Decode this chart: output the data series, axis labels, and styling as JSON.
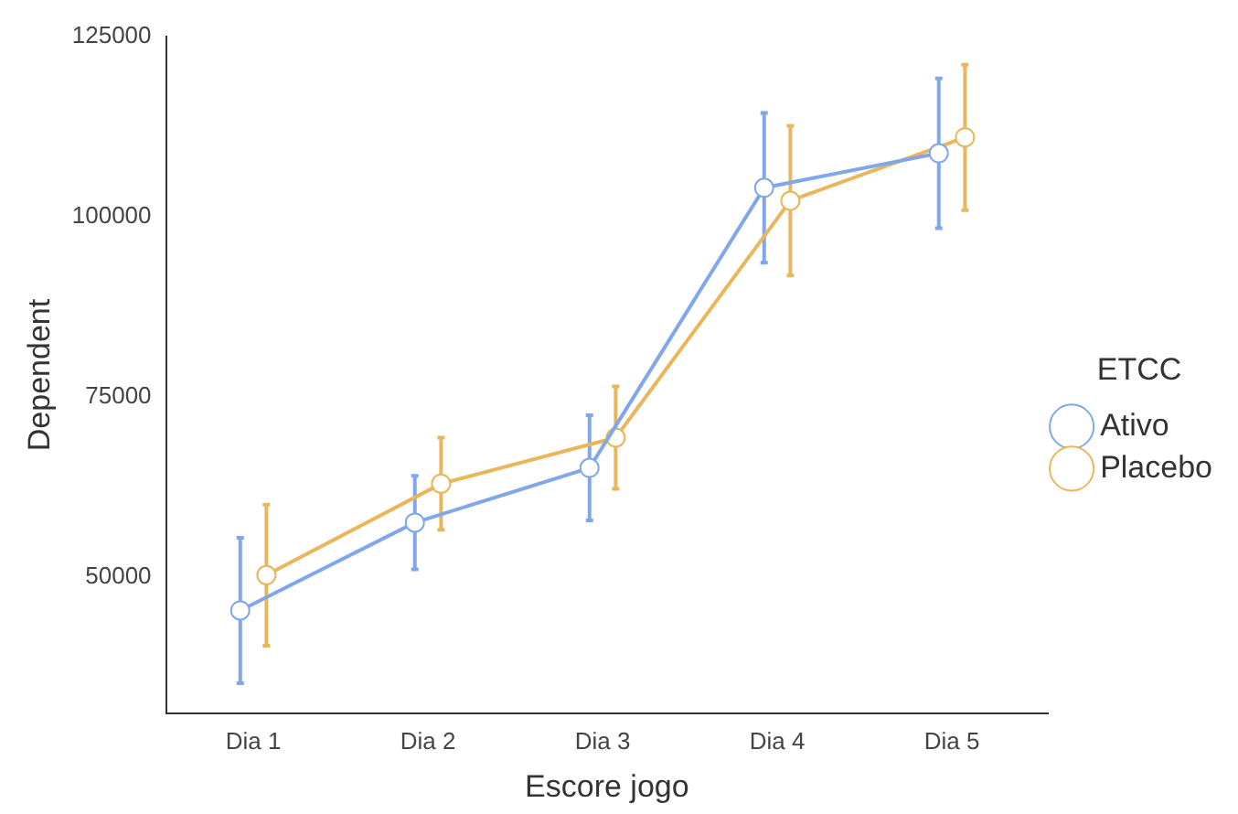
{
  "chart_data": {
    "type": "line",
    "xlabel": "Escore jogo",
    "ylabel": "Dependent",
    "legend_title": "ETCC",
    "legend": "right",
    "grid": false,
    "marker": "circle",
    "line_style": "solid",
    "categories": [
      "Dia 1",
      "Dia 2",
      "Dia 3",
      "Dia 4",
      "Dia 5"
    ],
    "ylim": [
      31000,
      125000
    ],
    "yticks": [
      50000,
      75000,
      100000,
      125000
    ],
    "series": [
      {
        "name": "Ativo",
        "color": "#7fa7ea",
        "values": [
          45300,
          57500,
          65100,
          104000,
          108800
        ],
        "errors": [
          10100,
          6500,
          7300,
          10400,
          10400
        ]
      },
      {
        "name": "Placebo",
        "color": "#e9b65c",
        "values": [
          50200,
          62900,
          69300,
          102200,
          111000
        ],
        "errors": [
          9800,
          6400,
          7100,
          10400,
          10100
        ]
      }
    ]
  }
}
